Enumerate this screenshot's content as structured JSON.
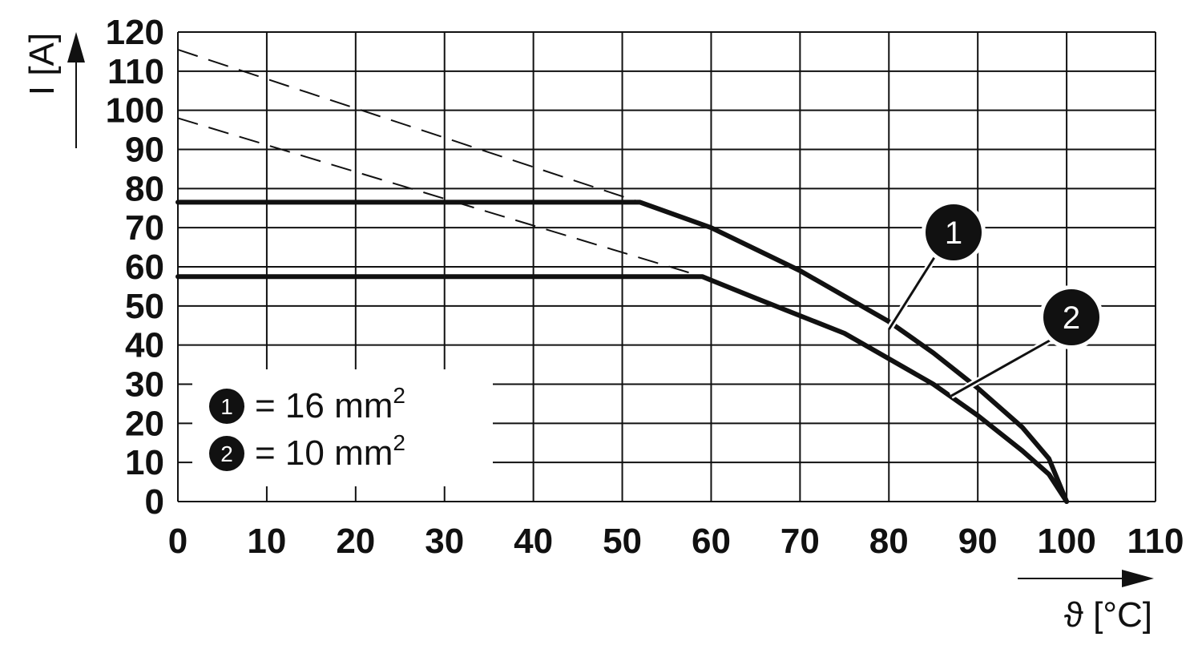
{
  "chart_data": {
    "type": "line",
    "xlabel": "ϑ [°C]",
    "ylabel": "I [A]",
    "xlim": [
      0,
      110
    ],
    "ylim": [
      0,
      120
    ],
    "x_ticks": [
      0,
      10,
      20,
      30,
      40,
      50,
      60,
      70,
      80,
      90,
      100,
      110
    ],
    "y_ticks": [
      0,
      10,
      20,
      30,
      40,
      50,
      60,
      70,
      80,
      90,
      100,
      110,
      120
    ],
    "grid": true,
    "legend_position": "bottom-left",
    "series": [
      {
        "marker": "1",
        "legend": "= 16 mm",
        "superscript": "2",
        "solid": {
          "x": [
            0,
            52,
            60,
            70,
            80,
            85,
            90,
            95,
            98,
            100
          ],
          "y": [
            76.5,
            76.5,
            70,
            59,
            46,
            38,
            29,
            19,
            11,
            0
          ]
        },
        "dashed": {
          "x": [
            0,
            52
          ],
          "y": [
            115.5,
            76.5
          ]
        }
      },
      {
        "marker": "2",
        "legend": "= 10 mm",
        "superscript": "2",
        "solid": {
          "x": [
            0,
            59,
            65,
            75,
            85,
            90,
            95,
            98,
            100
          ],
          "y": [
            57.5,
            57.5,
            52,
            43,
            30,
            22,
            13,
            7,
            0
          ]
        },
        "dashed": {
          "x": [
            0,
            59
          ],
          "y": [
            98,
            57.5
          ]
        }
      }
    ],
    "annotations": [
      {
        "label": "1",
        "target": [
          80,
          44
        ]
      },
      {
        "label": "2",
        "target": [
          87,
          27
        ]
      }
    ]
  }
}
